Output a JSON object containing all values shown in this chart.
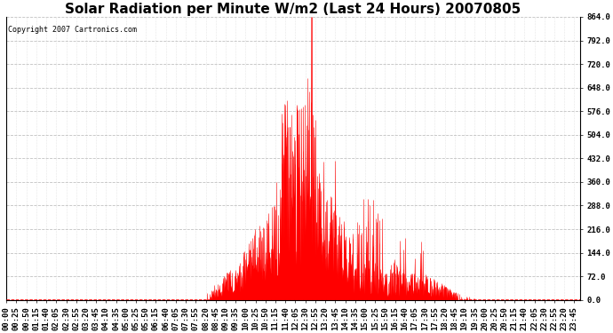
{
  "title": "Solar Radiation per Minute W/m2 (Last 24 Hours) 20070805",
  "copyright": "Copyright 2007 Cartronics.com",
  "yticks": [
    0.0,
    72.0,
    144.0,
    216.0,
    288.0,
    360.0,
    432.0,
    504.0,
    576.0,
    648.0,
    720.0,
    792.0,
    864.0
  ],
  "ymin": 0.0,
  "ymax": 864.0,
  "fill_color": "#FF0000",
  "line_color": "#FF0000",
  "background_color": "#FFFFFF",
  "plot_bg_color": "#FFFFFF",
  "grid_color": "#BBBBBB",
  "title_fontsize": 11,
  "copyright_fontsize": 6,
  "tick_label_fontsize": 6.5,
  "xtick_interval": 25
}
